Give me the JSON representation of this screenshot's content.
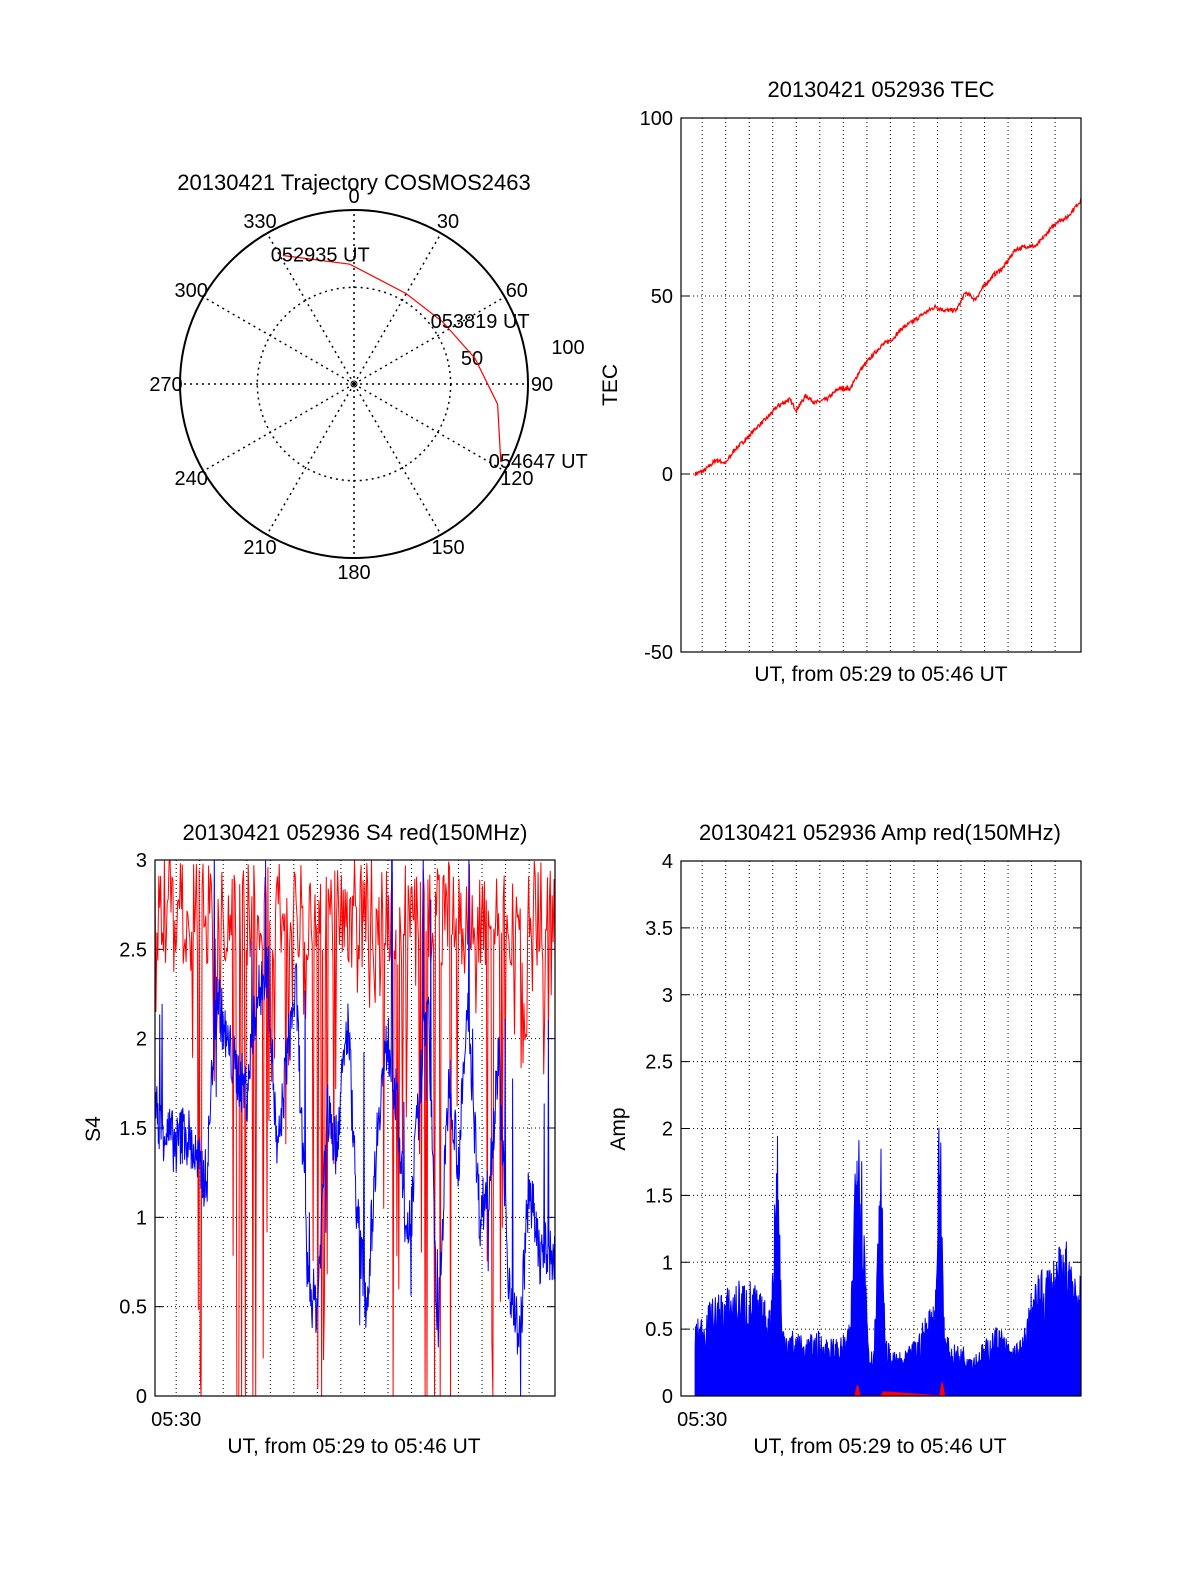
{
  "colors": {
    "red": "#ff0000",
    "blue": "#0000ff",
    "axis": "#000000",
    "grid": "#000000"
  },
  "chart_data": [
    {
      "id": "trajectory",
      "type": "polar",
      "title": "20130421 Trajectory COSMOS2463",
      "azimuth_labels": [
        "0",
        "30",
        "60",
        "90",
        "120",
        "150",
        "180",
        "210",
        "240",
        "270",
        "300",
        "330"
      ],
      "ring_labels": [
        "50",
        "100"
      ],
      "grid": true,
      "series": [
        {
          "color": "#ff0000",
          "points": [
            {
              "az": 331,
              "zen": 76
            },
            {
              "az": 358,
              "zen": 62
            },
            {
              "az": 30,
              "zen": 54
            },
            {
              "az": 55,
              "zen": 56
            },
            {
              "az": 78,
              "zen": 64
            },
            {
              "az": 98,
              "zen": 75
            },
            {
              "az": 118,
              "zen": 86
            }
          ]
        }
      ],
      "annotations": [
        {
          "text": "052935 UT",
          "az": 331,
          "zen": 76
        },
        {
          "text": "053819 UT",
          "az": 55,
          "zen": 56
        },
        {
          "text": "054647 UT",
          "az": 118,
          "zen": 86
        }
      ]
    },
    {
      "id": "tec",
      "type": "line",
      "title": "20130421 052936 TEC",
      "xlabel": "UT, from 05:29 to 05:46 UT",
      "ylabel": "TEC",
      "ylim": [
        -50,
        100
      ],
      "yticks": [
        "100",
        "50",
        "0",
        "-50"
      ],
      "xlim_minutes": [
        0,
        17
      ],
      "grid": true,
      "series": [
        {
          "color": "#ff0000",
          "x": [
            0.6,
            1.0,
            1.5,
            1.9,
            2.3,
            2.8,
            3.2,
            3.7,
            4.1,
            4.6,
            4.9,
            5.3,
            5.7,
            6.2,
            6.7,
            7.2,
            7.6,
            8.1,
            8.5,
            9.0,
            9.4,
            9.9,
            10.3,
            10.8,
            11.2,
            11.7,
            12.1,
            12.5,
            12.9,
            13.3,
            13.7,
            14.2,
            14.7,
            15.1,
            15.6,
            16.0,
            16.4,
            17.0
          ],
          "y": [
            0,
            1,
            4,
            3,
            7,
            10,
            13,
            16,
            19,
            21,
            18,
            22,
            20,
            21,
            24,
            24,
            29,
            33,
            36,
            38,
            41,
            43,
            45,
            47,
            46,
            46,
            51,
            49,
            53,
            56,
            58,
            63,
            64,
            64,
            68,
            71,
            72,
            77
          ]
        }
      ]
    },
    {
      "id": "s4",
      "type": "line",
      "title": "20130421 052936 S4 red(150MHz)",
      "xlabel": "UT, from 05:29 to 05:46 UT",
      "ylabel": "S4",
      "ylim": [
        0,
        3
      ],
      "yticks": [
        "3",
        "2.5",
        "2",
        "1.5",
        "1",
        "0.5",
        "0"
      ],
      "xtick_labels": [
        "05:30"
      ],
      "xlim_minutes": [
        0,
        17
      ],
      "grid": true,
      "series": [
        {
          "color": "#ff0000",
          "style": "saturated",
          "x": [
            0.0,
            1.0,
            1.5,
            2.0,
            2.5,
            3.0,
            3.5,
            4.0,
            4.5,
            5.0,
            5.5,
            6.0,
            6.5,
            7.0,
            7.5,
            8.0,
            8.5,
            9.0,
            9.5,
            10.0,
            10.5,
            11.0,
            11.5,
            12.0,
            12.5,
            13.0,
            13.5,
            14.0,
            14.5,
            15.0,
            15.5,
            16.0,
            16.5,
            17.0
          ],
          "y": [
            2.6,
            2.8,
            2.5,
            0.0,
            2.2,
            2.7,
            0.0,
            0.0,
            0.0,
            2.4,
            1.5,
            2.8,
            2.1,
            0.0,
            1.5,
            2.9,
            2.8,
            2.5,
            2.7,
            0.0,
            1.5,
            2.8,
            0.0,
            0.0,
            0.0,
            2.9,
            2.7,
            1.2,
            0.0,
            2.6,
            2.0,
            2.6,
            2.2,
            2.8
          ]
        },
        {
          "color": "#0000ff",
          "x": [
            0.0,
            0.4,
            0.9,
            1.3,
            1.8,
            2.2,
            2.6,
            3.0,
            3.5,
            3.9,
            4.3,
            4.8,
            5.2,
            5.6,
            6.0,
            6.5,
            6.9,
            7.3,
            7.7,
            8.2,
            8.6,
            9.0,
            9.5,
            9.9,
            10.3,
            10.7,
            11.2,
            11.6,
            12.0,
            12.5,
            12.9,
            13.3,
            13.8,
            14.2,
            14.6,
            15.0,
            15.5,
            15.9,
            16.3,
            16.8,
            17.0
          ],
          "y": [
            1.6,
            1.5,
            1.4,
            1.5,
            1.3,
            1.2,
            2.3,
            2.0,
            1.8,
            1.7,
            2.2,
            2.4,
            1.3,
            1.9,
            2.3,
            0.6,
            0.5,
            1.6,
            1.4,
            2.1,
            1.0,
            0.5,
            1.6,
            2.0,
            1.6,
            0.8,
            1.6,
            2.3,
            0.3,
            1.8,
            1.3,
            2.2,
            1.0,
            1.2,
            1.9,
            0.7,
            0.3,
            1.2,
            0.8,
            0.8,
            0.75
          ]
        }
      ]
    },
    {
      "id": "amp",
      "type": "line",
      "title": "20130421 052936 Amp red(150MHz)",
      "xlabel": "UT, from 05:29 to 05:46 UT",
      "ylabel": "Amp",
      "ylim": [
        0,
        4
      ],
      "yticks": [
        "4",
        "3.5",
        "3",
        "2.5",
        "2",
        "1.5",
        "1",
        "0.5",
        "0"
      ],
      "xtick_labels": [
        "05:30"
      ],
      "xlim_minutes": [
        0,
        17
      ],
      "grid": true,
      "series": [
        {
          "color": "#0000ff",
          "style": "filled",
          "x": [
            0.6,
            1.0,
            1.5,
            2.0,
            2.5,
            3.0,
            3.4,
            3.8,
            4.1,
            4.3,
            4.8,
            5.3,
            5.8,
            6.3,
            6.8,
            7.2,
            7.5,
            7.8,
            8.0,
            8.2,
            8.5,
            8.7,
            9.0,
            9.5,
            10.0,
            10.5,
            10.8,
            11.0,
            11.2,
            11.5,
            12.0,
            12.5,
            13.0,
            13.5,
            14.0,
            14.5,
            15.0,
            15.5,
            16.0,
            16.5,
            17.0
          ],
          "y": [
            0.5,
            0.6,
            0.7,
            0.75,
            0.8,
            0.8,
            0.7,
            0.6,
            1.95,
            0.5,
            0.45,
            0.4,
            0.45,
            0.4,
            0.4,
            0.5,
            2.4,
            1.2,
            0.3,
            0.35,
            1.7,
            0.4,
            0.3,
            0.3,
            0.4,
            0.6,
            0.7,
            2.2,
            0.45,
            0.35,
            0.35,
            0.3,
            0.4,
            0.5,
            0.35,
            0.4,
            0.8,
            0.9,
            1.0,
            1.1,
            0.8
          ]
        },
        {
          "color": "#ff0000",
          "x": [
            7.4,
            7.5,
            7.6,
            8.5,
            8.6,
            11.0,
            11.1,
            11.2
          ],
          "y": [
            0.0,
            0.08,
            0.0,
            0.0,
            0.03,
            0.0,
            0.1,
            0.0
          ]
        }
      ]
    }
  ]
}
